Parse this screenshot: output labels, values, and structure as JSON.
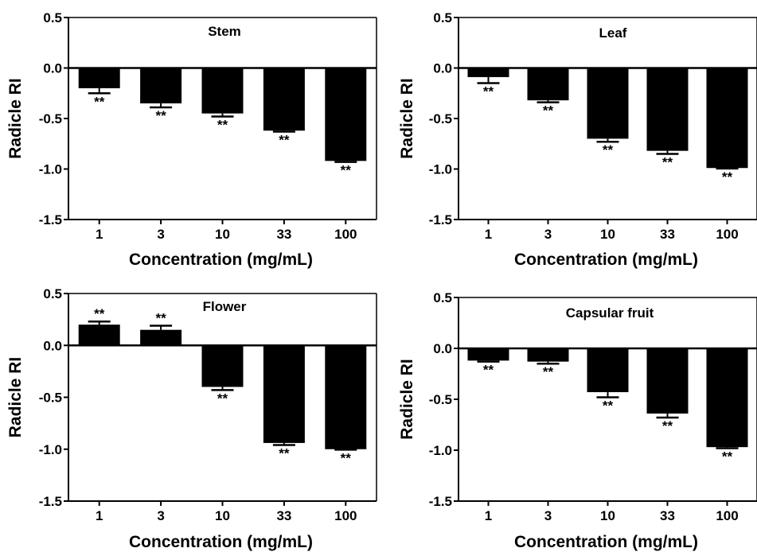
{
  "chart_data": [
    {
      "type": "bar",
      "title": "Stem",
      "xlabel": "Concentration (mg/mL)",
      "ylabel": "Radicle RI",
      "categories": [
        "1",
        "3",
        "10",
        "33",
        "100"
      ],
      "values": [
        -0.2,
        -0.35,
        -0.45,
        -0.62,
        -0.92
      ],
      "error": [
        0.05,
        0.04,
        0.03,
        0.01,
        0.01
      ],
      "annotations": [
        "**",
        "**",
        "**",
        "**",
        "**"
      ],
      "ylim": [
        -1.5,
        0.5
      ],
      "yticks": [
        "0.5",
        "0.0",
        "-0.5",
        "-1.0",
        "-1.5"
      ]
    },
    {
      "type": "bar",
      "title": "Leaf",
      "xlabel": "Concentration (mg/mL)",
      "ylabel": "Radicle RI",
      "categories": [
        "1",
        "3",
        "10",
        "33",
        "100"
      ],
      "values": [
        -0.09,
        -0.32,
        -0.7,
        -0.82,
        -0.99
      ],
      "error": [
        0.06,
        0.02,
        0.03,
        0.03,
        0.005
      ],
      "annotations": [
        "**",
        "**",
        "**",
        "**",
        "**"
      ],
      "ylim": [
        -1.5,
        0.5
      ],
      "yticks": [
        "0.5",
        "0.0",
        "-0.5",
        "-1.0",
        "-1.5"
      ]
    },
    {
      "type": "bar",
      "title": "Flower",
      "xlabel": "Concentration (mg/mL)",
      "ylabel": "Radicle RI",
      "categories": [
        "1",
        "3",
        "10",
        "33",
        "100"
      ],
      "values": [
        0.2,
        0.15,
        -0.4,
        -0.94,
        -1.0
      ],
      "error": [
        0.03,
        0.04,
        0.03,
        0.02,
        0.005
      ],
      "annotations": [
        "**",
        "**",
        "**",
        "**",
        "**"
      ],
      "ylim": [
        -1.5,
        0.5
      ],
      "yticks": [
        "0.5",
        "0.0",
        "-0.5",
        "-1.0",
        "-1.5"
      ]
    },
    {
      "type": "bar",
      "title": "Capsular fruit",
      "xlabel": "Concentration (mg/mL)",
      "ylabel": "Radicle RI",
      "categories": [
        "1",
        "3",
        "10",
        "33",
        "100"
      ],
      "values": [
        -0.12,
        -0.13,
        -0.43,
        -0.64,
        -0.97
      ],
      "error": [
        0.01,
        0.02,
        0.05,
        0.04,
        0.01
      ],
      "annotations": [
        "**",
        "**",
        "**",
        "**",
        "**"
      ],
      "ylim": [
        -1.5,
        0.5
      ],
      "yticks": [
        "0.5",
        "0.0",
        "-0.5",
        "-1.0",
        "-1.5"
      ]
    }
  ],
  "colors": {
    "bar": "#000000",
    "axis": "#000000",
    "background": "#ffffff"
  }
}
